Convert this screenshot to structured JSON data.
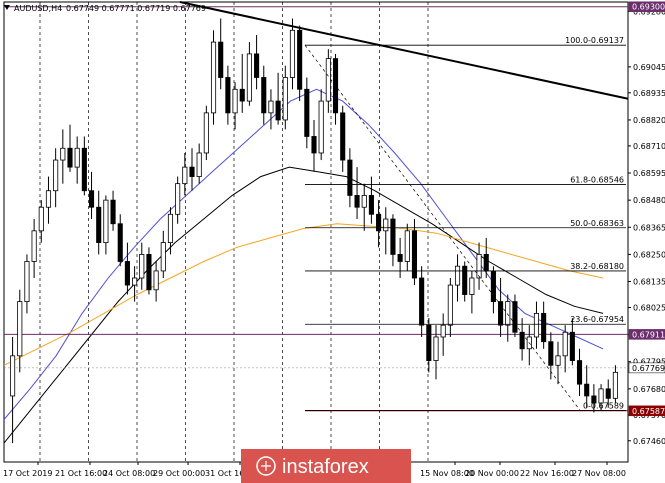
{
  "header": {
    "symbol": "AUDUSD,H4",
    "ohlc": "0.67749 0.67771 0.67719 0.67769"
  },
  "watermark": {
    "text": "instaforex"
  },
  "colors": {
    "bull_candle": "#ffffff",
    "bear_candle": "#000000",
    "ma_blue": "#5050d8",
    "ma_black": "#000000",
    "ma_orange": "#f5a623",
    "resistance_line": "#6b2d6b",
    "support_line": "#8b0000",
    "fib_line": "#000000",
    "trendline": "#000000",
    "grid": "#000000",
    "watermark_bg": "#d9534f"
  },
  "chart_data": {
    "type": "candlestick",
    "ylim": [
      0.6737,
      0.6932
    ],
    "y_ticks": [
      "0.69280",
      "0.69045",
      "0.68935",
      "0.68820",
      "0.68710",
      "0.68595",
      "0.68480",
      "0.68365",
      "0.68250",
      "0.68135",
      "0.68025",
      "0.67910",
      "0.67795",
      "0.67680",
      "0.67570",
      "0.67460"
    ],
    "x_ticks": [
      "17 Oct 2019",
      "21 Oct 16:00",
      "24 Oct 08:00",
      "29 Oct 00:00",
      "31 Oct 16:00",
      "15 Nov 08:00",
      "20 Nov 00:00",
      "22 Nov 16:00",
      "27 Nov 08:00"
    ],
    "price_tags": [
      {
        "label": "0.69300",
        "value": 0.693,
        "kind": "resistance"
      },
      {
        "label": "0.67911",
        "value": 0.67911,
        "kind": "level"
      },
      {
        "label": "0.67769",
        "value": 0.67769,
        "kind": "current"
      },
      {
        "label": "0.67587",
        "value": 0.67587,
        "kind": "support"
      }
    ],
    "fib_levels": [
      {
        "label": "100.0-0.69137",
        "value": 0.69137
      },
      {
        "label": "61.8-0.68546",
        "value": 0.68546
      },
      {
        "label": "50.0-0.68363",
        "value": 0.68363
      },
      {
        "label": "38.2-0.68180",
        "value": 0.6818
      },
      {
        "label": "23.6-0.67954",
        "value": 0.67954
      },
      {
        "label": "0-0.67589",
        "value": 0.67589
      }
    ],
    "candles": [
      [
        0.6765,
        0.679,
        0.6745,
        0.6782
      ],
      [
        0.6782,
        0.681,
        0.6775,
        0.6805
      ],
      [
        0.6805,
        0.6825,
        0.68,
        0.6822
      ],
      [
        0.6822,
        0.684,
        0.6815,
        0.6835
      ],
      [
        0.6835,
        0.6848,
        0.683,
        0.6845
      ],
      [
        0.6845,
        0.6858,
        0.6838,
        0.6852
      ],
      [
        0.6852,
        0.687,
        0.6845,
        0.6865
      ],
      [
        0.6865,
        0.6878,
        0.6855,
        0.687
      ],
      [
        0.687,
        0.688,
        0.686,
        0.6862
      ],
      [
        0.6862,
        0.6875,
        0.6855,
        0.687
      ],
      [
        0.687,
        0.6875,
        0.685,
        0.6852
      ],
      [
        0.6852,
        0.686,
        0.684,
        0.6845
      ],
      [
        0.6845,
        0.6852,
        0.6825,
        0.683
      ],
      [
        0.683,
        0.685,
        0.6825,
        0.6848
      ],
      [
        0.6848,
        0.6852,
        0.6835,
        0.6838
      ],
      [
        0.6838,
        0.6842,
        0.682,
        0.6822
      ],
      [
        0.6822,
        0.683,
        0.6808,
        0.6812
      ],
      [
        0.6812,
        0.682,
        0.6805,
        0.6815
      ],
      [
        0.6815,
        0.683,
        0.681,
        0.6825
      ],
      [
        0.6825,
        0.6828,
        0.6808,
        0.681
      ],
      [
        0.681,
        0.6822,
        0.6805,
        0.6818
      ],
      [
        0.6818,
        0.6835,
        0.6815,
        0.683
      ],
      [
        0.683,
        0.6845,
        0.6825,
        0.6842
      ],
      [
        0.6842,
        0.6858,
        0.6838,
        0.6855
      ],
      [
        0.6855,
        0.6868,
        0.685,
        0.6862
      ],
      [
        0.6862,
        0.687,
        0.6852,
        0.6858
      ],
      [
        0.6858,
        0.6872,
        0.6855,
        0.6868
      ],
      [
        0.6868,
        0.6888,
        0.6865,
        0.6885
      ],
      [
        0.6885,
        0.692,
        0.688,
        0.6915
      ],
      [
        0.6915,
        0.6925,
        0.6895,
        0.69
      ],
      [
        0.69,
        0.6905,
        0.688,
        0.6885
      ],
      [
        0.6885,
        0.6898,
        0.6878,
        0.6895
      ],
      [
        0.6895,
        0.691,
        0.6885,
        0.689
      ],
      [
        0.689,
        0.6915,
        0.6888,
        0.691
      ],
      [
        0.691,
        0.6918,
        0.6895,
        0.69
      ],
      [
        0.69,
        0.6905,
        0.688,
        0.6885
      ],
      [
        0.6885,
        0.6895,
        0.6878,
        0.689
      ],
      [
        0.689,
        0.6902,
        0.688,
        0.6882
      ],
      [
        0.6882,
        0.6905,
        0.6878,
        0.69
      ],
      [
        0.69,
        0.6925,
        0.6895,
        0.692
      ],
      [
        0.692,
        0.6922,
        0.689,
        0.6895
      ],
      [
        0.6895,
        0.69,
        0.687,
        0.6875
      ],
      [
        0.6875,
        0.6882,
        0.686,
        0.6868
      ],
      [
        0.6868,
        0.6895,
        0.6865,
        0.689
      ],
      [
        0.689,
        0.6912,
        0.6885,
        0.6908
      ],
      [
        0.6908,
        0.691,
        0.688,
        0.6885
      ],
      [
        0.6885,
        0.6888,
        0.686,
        0.6865
      ],
      [
        0.6865,
        0.687,
        0.6845,
        0.685
      ],
      [
        0.685,
        0.6862,
        0.684,
        0.6845
      ],
      [
        0.6845,
        0.6855,
        0.6835,
        0.685
      ],
      [
        0.685,
        0.6858,
        0.6838,
        0.6842
      ],
      [
        0.6842,
        0.6848,
        0.6828,
        0.6835
      ],
      [
        0.6835,
        0.6845,
        0.6825,
        0.684
      ],
      [
        0.684,
        0.6842,
        0.682,
        0.6825
      ],
      [
        0.6825,
        0.6832,
        0.6815,
        0.6822
      ],
      [
        0.6822,
        0.6838,
        0.6818,
        0.6835
      ],
      [
        0.6835,
        0.684,
        0.6812,
        0.6815
      ],
      [
        0.6815,
        0.682,
        0.679,
        0.6795
      ],
      [
        0.6795,
        0.6798,
        0.6775,
        0.678
      ],
      [
        0.678,
        0.6795,
        0.6772,
        0.679
      ],
      [
        0.679,
        0.68,
        0.6782,
        0.6795
      ],
      [
        0.6795,
        0.6815,
        0.679,
        0.6812
      ],
      [
        0.6812,
        0.6825,
        0.6805,
        0.682
      ],
      [
        0.682,
        0.6822,
        0.6805,
        0.6808
      ],
      [
        0.6808,
        0.6818,
        0.68,
        0.6815
      ],
      [
        0.6815,
        0.683,
        0.681,
        0.6825
      ],
      [
        0.6825,
        0.6832,
        0.6815,
        0.6818
      ],
      [
        0.6818,
        0.682,
        0.68,
        0.6805
      ],
      [
        0.6805,
        0.6815,
        0.679,
        0.6795
      ],
      [
        0.6795,
        0.6808,
        0.6788,
        0.6805
      ],
      [
        0.6805,
        0.6808,
        0.679,
        0.6792
      ],
      [
        0.6792,
        0.6798,
        0.678,
        0.6785
      ],
      [
        0.6785,
        0.6795,
        0.6778,
        0.679
      ],
      [
        0.679,
        0.6805,
        0.6785,
        0.68
      ],
      [
        0.68,
        0.6805,
        0.6785,
        0.6788
      ],
      [
        0.6788,
        0.6792,
        0.6772,
        0.6778
      ],
      [
        0.6778,
        0.6788,
        0.677,
        0.6782
      ],
      [
        0.6782,
        0.6795,
        0.6775,
        0.6792
      ],
      [
        0.6792,
        0.6798,
        0.6778,
        0.678
      ],
      [
        0.678,
        0.6785,
        0.6765,
        0.677
      ],
      [
        0.677,
        0.6778,
        0.676,
        0.6765
      ],
      [
        0.6765,
        0.677,
        0.6758,
        0.6762
      ],
      [
        0.6762,
        0.677,
        0.6759,
        0.6768
      ],
      [
        0.6768,
        0.6772,
        0.676,
        0.6764
      ],
      [
        0.6764,
        0.6778,
        0.6762,
        0.6775
      ]
    ],
    "series": [
      {
        "name": "",
        "color": "#5050d8",
        "values": [
          0.6755,
          0.6768,
          0.6782,
          0.68,
          0.6815,
          0.6828,
          0.684,
          0.685,
          0.686,
          0.687,
          0.688,
          0.689,
          0.6895,
          0.689,
          0.688,
          0.6868,
          0.6855,
          0.684,
          0.6825,
          0.681,
          0.68,
          0.6795,
          0.679,
          0.6785
        ]
      },
      {
        "name": "",
        "color": "#000000",
        "values": [
          0.6745,
          0.676,
          0.6775,
          0.679,
          0.6805,
          0.6818,
          0.683,
          0.684,
          0.685,
          0.6858,
          0.6862,
          0.686,
          0.6858,
          0.6852,
          0.6845,
          0.6838,
          0.683,
          0.6822,
          0.6815,
          0.6808,
          0.6803,
          0.68
        ]
      },
      {
        "name": "",
        "color": "#f5a623",
        "values": [
          0.6778,
          0.6785,
          0.6792,
          0.68,
          0.6808,
          0.6815,
          0.6822,
          0.6828,
          0.6832,
          0.6836,
          0.6838,
          0.6837,
          0.6836,
          0.6834,
          0.683,
          0.6826,
          0.6822,
          0.6818,
          0.6815
        ]
      }
    ],
    "grid": true
  }
}
